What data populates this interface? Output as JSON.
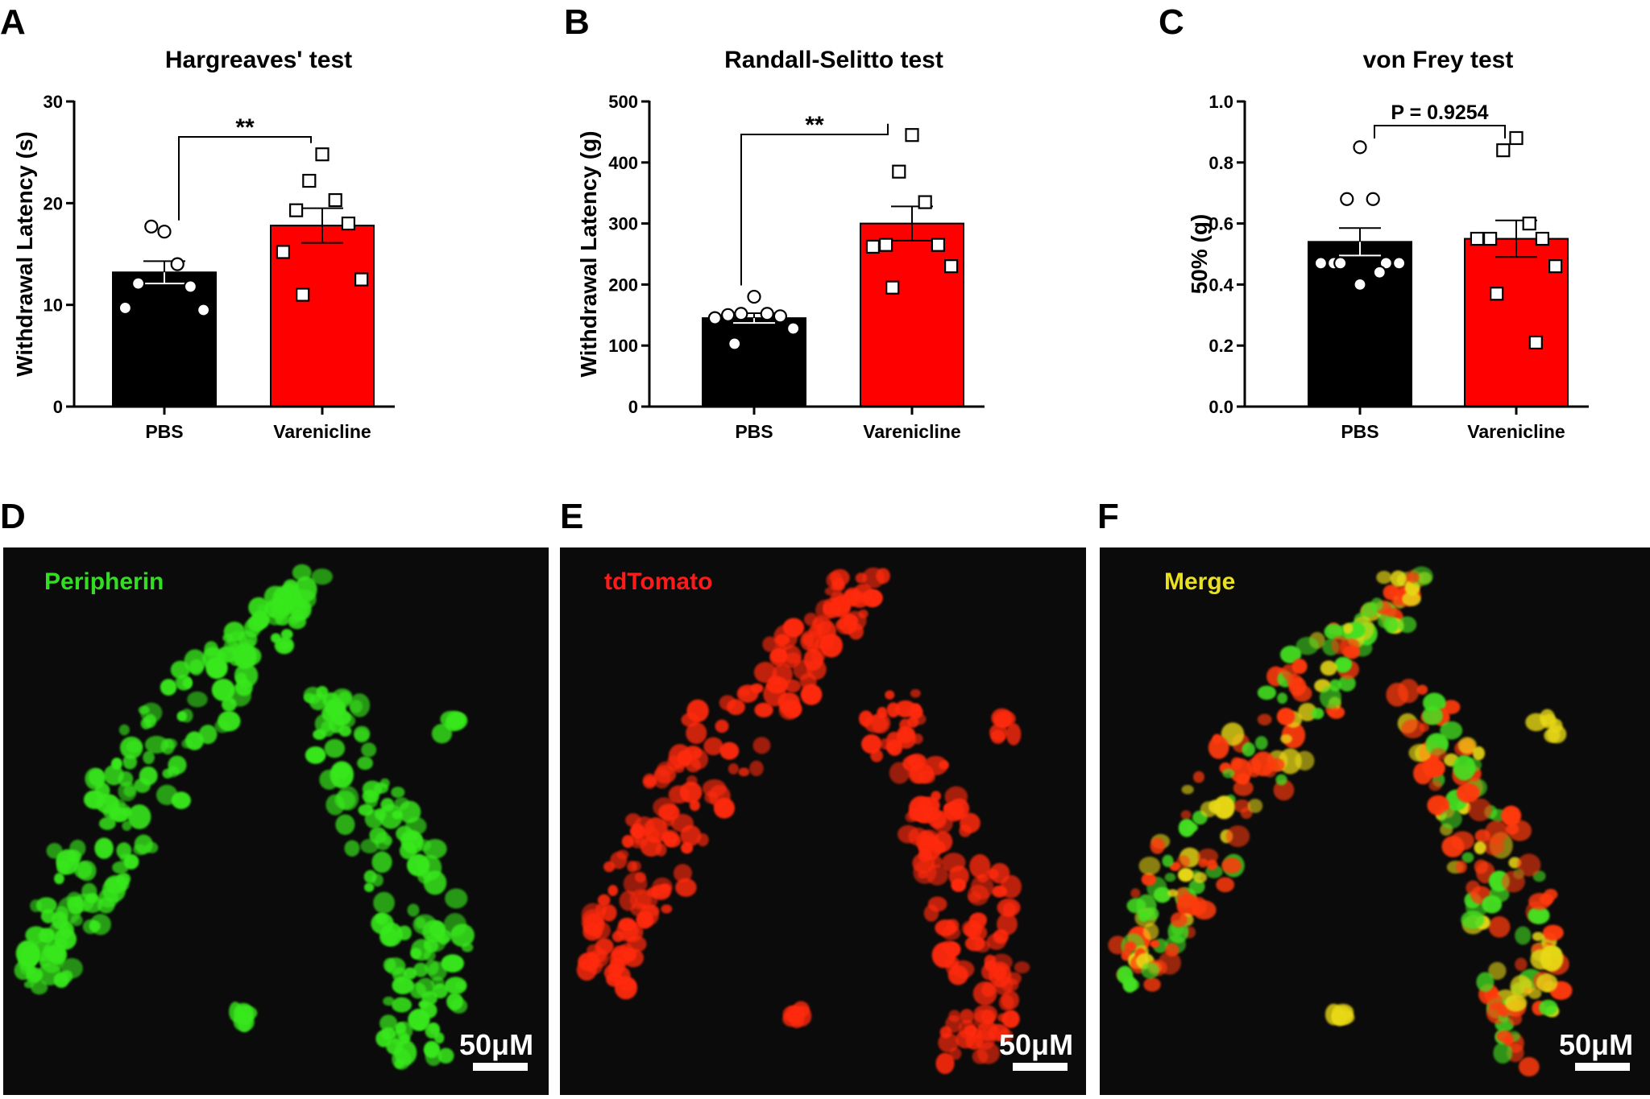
{
  "chart_data": [
    {
      "panel": "A",
      "type": "bar",
      "title": "Hargreaves' test",
      "ylabel": "Withdrawal Latency (s)",
      "xlabel": "",
      "ylim": [
        0,
        30
      ],
      "yticks": [
        0,
        10,
        20,
        30
      ],
      "categories": [
        "PBS",
        "Varenicline"
      ],
      "values": [
        13.2,
        17.8
      ],
      "errors": [
        1.1,
        1.7
      ],
      "bar_colors": [
        "#000000",
        "#ff0000"
      ],
      "points": [
        [
          17.2,
          17.7,
          14.0,
          12.1,
          11.8,
          9.7,
          9.5
        ],
        [
          24.8,
          22.2,
          20.3,
          19.3,
          18.0,
          15.2,
          12.5,
          11.0
        ]
      ],
      "significance": "**"
    },
    {
      "panel": "B",
      "type": "bar",
      "title": "Randall-Selitto test",
      "ylabel": "Withdrawal Latency (g)",
      "xlabel": "",
      "ylim": [
        0,
        500
      ],
      "yticks": [
        0,
        100,
        200,
        300,
        400,
        500
      ],
      "categories": [
        "PBS",
        "Varenicline"
      ],
      "values": [
        145,
        300
      ],
      "errors": [
        8,
        28
      ],
      "bar_colors": [
        "#000000",
        "#ff0000"
      ],
      "points": [
        [
          180,
          152,
          152,
          150,
          148,
          145,
          128,
          103
        ],
        [
          445,
          385,
          335,
          265,
          265,
          262,
          230,
          195
        ]
      ],
      "significance": "**"
    },
    {
      "panel": "C",
      "type": "bar",
      "title": "von Frey test",
      "ylabel": "50% (g)",
      "xlabel": "",
      "ylim": [
        0,
        1.0
      ],
      "yticks": [
        "0.0",
        "0.2",
        "0.4",
        "0.6",
        "0.8",
        "1.0"
      ],
      "categories": [
        "PBS",
        "Varenicline"
      ],
      "values": [
        0.54,
        0.55
      ],
      "errors": [
        0.045,
        0.06
      ],
      "bar_colors": [
        "#000000",
        "#ff0000"
      ],
      "points": [
        [
          0.85,
          0.68,
          0.68,
          0.47,
          0.47,
          0.47,
          0.47,
          0.47,
          0.44,
          0.4
        ],
        [
          0.88,
          0.84,
          0.6,
          0.55,
          0.55,
          0.55,
          0.46,
          0.37,
          0.21
        ]
      ],
      "significance": "P = 0.9254"
    }
  ],
  "images": [
    {
      "panel": "D",
      "label": "Peripherin",
      "label_color": "#33dd22",
      "cell_color": "#38e81e",
      "scale_bar": "50μM"
    },
    {
      "panel": "E",
      "label": "tdTomato",
      "label_color": "#ff1a1a",
      "cell_color": "#ff2a10",
      "scale_bar": "50μM"
    },
    {
      "panel": "F",
      "label": "Merge",
      "label_color": "#e8e020",
      "cell_color": "#e8d818",
      "scale_bar": "50μM"
    }
  ]
}
